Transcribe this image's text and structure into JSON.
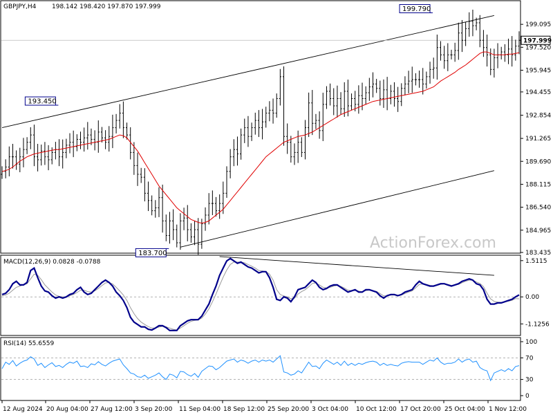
{
  "chart_data": {
    "type": "line",
    "symbol": "GBPJPY,H4",
    "ohlc_readout": "198.142 198.420 197.870 197.999",
    "current_price": "197.999",
    "watermark": "ActionForex.com",
    "colors": {
      "background": "#ffffff",
      "candles": "#000000",
      "moving_average": "#e00000",
      "macd_line": "#00008b",
      "macd_signal": "#999999",
      "rsi_line": "#1e90ff",
      "price_tag_border": "#00008b"
    },
    "x_tick_labels": [
      "12 Aug 2024",
      "20 Aug 04:00",
      "27 Aug 12:00",
      "3 Sep 20:00",
      "11 Sep 04:00",
      "18 Sep 12:00",
      "25 Sep 20:00",
      "3 Oct 04:00",
      "10 Oct 12:00",
      "17 Oct 20:00",
      "25 Oct 04:00",
      "1 Nov 12:00"
    ],
    "panels": [
      {
        "name": "price",
        "y_ticks": [
          "199.095",
          "197.520",
          "195.945",
          "194.455",
          "192.854",
          "191.265",
          "189.690",
          "188.115",
          "186.540",
          "184.965",
          "183.435"
        ],
        "ylim": [
          183.435,
          200.67
        ],
        "annotations": [
          {
            "text": "193.450",
            "x_index": 15,
            "value": 193.45
          },
          {
            "text": "183.700",
            "x_index": 46,
            "value": 183.7
          },
          {
            "text": "199.790",
            "x_index": 120,
            "value": 199.79
          }
        ],
        "channel": {
          "upper": [
            [
              0,
              192.0
            ],
            [
              138,
              199.7
            ]
          ],
          "lower": [
            [
              50,
              183.8
            ],
            [
              138,
              189.05
            ]
          ]
        },
        "close": [
          189.0,
          189.3,
          190.0,
          190.0,
          189.5,
          190.0,
          190.5,
          191.0,
          191.5,
          190.0,
          189.8,
          190.4,
          190.0,
          189.8,
          190.3,
          190.5,
          190.0,
          190.3,
          190.8,
          191.0,
          190.7,
          191.2,
          191.0,
          191.3,
          191.5,
          191.2,
          191.0,
          191.7,
          191.3,
          191.0,
          191.4,
          192.0,
          192.5,
          193.0,
          192.0,
          191.5,
          190.3,
          189.4,
          188.8,
          188.6,
          187.5,
          187.0,
          186.3,
          186.5,
          187.2,
          185.6,
          184.6,
          185.6,
          185.0,
          184.1,
          185.6,
          185.8,
          185.0,
          184.5,
          185.0,
          184.0,
          185.4,
          186.0,
          186.8,
          186.8,
          186.3,
          186.8,
          187.5,
          189.0,
          190.0,
          190.5,
          190.2,
          191.5,
          192.0,
          191.4,
          192.0,
          192.5,
          192.0,
          192.4,
          193.0,
          193.2,
          193.0,
          194.0,
          195.5,
          191.4,
          191.0,
          190.0,
          190.3,
          191.0,
          190.3,
          192.0,
          193.7,
          192.3,
          192.5,
          191.8,
          193.6,
          194.5,
          194.0,
          193.5,
          194.0,
          193.3,
          194.5,
          193.5,
          194.0,
          193.6,
          194.2,
          194.0,
          194.4,
          194.8,
          195.0,
          194.7,
          194.0,
          194.6,
          194.0,
          194.5,
          194.0,
          193.8,
          194.7,
          195.0,
          195.2,
          195.3,
          195.3,
          195.3,
          195.0,
          195.5,
          196.0,
          196.1,
          197.5,
          197.0,
          196.6,
          197.0,
          197.0,
          197.3,
          198.5,
          198.0,
          198.8,
          199.3,
          199.0,
          199.2,
          198.0,
          197.5,
          197.0,
          196.0,
          196.8,
          197.0,
          197.2,
          197.0,
          197.4,
          197.0,
          197.6,
          197.999
        ],
        "moving_average": [
          189.0,
          189.05,
          189.15,
          189.3,
          189.5,
          189.7,
          189.85,
          190.0,
          190.1,
          190.2,
          190.25,
          190.3,
          190.35,
          190.4,
          190.45,
          190.5,
          190.5,
          190.55,
          190.6,
          190.65,
          190.7,
          190.75,
          190.8,
          190.85,
          190.9,
          190.95,
          191.0,
          191.05,
          191.1,
          191.15,
          191.2,
          191.3,
          191.4,
          191.5,
          191.45,
          191.3,
          191.0,
          190.7,
          190.4,
          190.0,
          189.6,
          189.2,
          188.8,
          188.4,
          188.0,
          187.7,
          187.4,
          187.1,
          186.8,
          186.5,
          186.3,
          186.1,
          185.9,
          185.7,
          185.6,
          185.5,
          185.45,
          185.5,
          185.6,
          185.8,
          186.0,
          186.2,
          186.4,
          186.7,
          187.0,
          187.3,
          187.6,
          187.9,
          188.2,
          188.5,
          188.8,
          189.1,
          189.4,
          189.7,
          190.0,
          190.2,
          190.4,
          190.6,
          190.8,
          191.0,
          191.1,
          191.2,
          191.3,
          191.4,
          191.45,
          191.5,
          191.6,
          191.7,
          191.85,
          192.0,
          192.15,
          192.3,
          192.45,
          192.6,
          192.75,
          192.9,
          193.0,
          193.1,
          193.2,
          193.3,
          193.4,
          193.5,
          193.6,
          193.7,
          193.8,
          193.85,
          193.9,
          193.95,
          194.0,
          194.05,
          194.1,
          194.15,
          194.2,
          194.25,
          194.3,
          194.35,
          194.4,
          194.45,
          194.5,
          194.6,
          194.7,
          194.8,
          195.0,
          195.2,
          195.35,
          195.5,
          195.65,
          195.8,
          196.0,
          196.15,
          196.3,
          196.5,
          196.7,
          196.9,
          197.1,
          197.2,
          197.2,
          197.1,
          197.0,
          197.0,
          197.0,
          197.0,
          197.05,
          197.05,
          197.1,
          197.15
        ]
      },
      {
        "name": "macd",
        "label": "MACD(12,26,9) 0.0828 -0.0788",
        "y_ticks": [
          "1.5115",
          "0.00",
          "-1.1256"
        ],
        "ylim": [
          -1.55,
          1.65
        ],
        "trendline": [
          [
            61,
            1.68
          ],
          [
            138,
            0.9
          ]
        ],
        "macd": [
          0.1,
          0.15,
          0.3,
          0.55,
          0.65,
          0.5,
          0.5,
          0.6,
          1.1,
          1.2,
          0.8,
          0.45,
          0.25,
          0.2,
          0.05,
          -0.05,
          0.0,
          -0.05,
          0.0,
          0.1,
          0.15,
          0.3,
          0.4,
          0.2,
          0.1,
          0.15,
          0.3,
          0.45,
          0.6,
          0.7,
          0.6,
          0.45,
          0.2,
          0.05,
          -0.15,
          -0.45,
          -0.85,
          -1.05,
          -1.15,
          -1.25,
          -1.25,
          -1.35,
          -1.38,
          -1.3,
          -1.2,
          -1.2,
          -1.28,
          -1.4,
          -1.4,
          -1.4,
          -1.2,
          -1.1,
          -1.0,
          -0.95,
          -0.95,
          -0.95,
          -0.8,
          -0.55,
          -0.3,
          0.1,
          0.45,
          0.9,
          1.2,
          1.5,
          1.6,
          1.5,
          1.4,
          1.45,
          1.35,
          1.25,
          1.2,
          1.1,
          1.0,
          1.05,
          1.05,
          0.8,
          0.4,
          -0.1,
          -0.15,
          0.0,
          -0.05,
          -0.2,
          0.0,
          0.3,
          0.35,
          0.4,
          0.55,
          0.7,
          0.6,
          0.4,
          0.3,
          0.35,
          0.45,
          0.5,
          0.5,
          0.4,
          0.3,
          0.2,
          0.25,
          0.3,
          0.2,
          0.2,
          0.3,
          0.3,
          0.25,
          0.2,
          0.05,
          -0.05,
          0.05,
          0.1,
          0.1,
          0.05,
          0.1,
          0.2,
          0.25,
          0.3,
          0.5,
          0.65,
          0.55,
          0.5,
          0.45,
          0.45,
          0.5,
          0.55,
          0.55,
          0.5,
          0.45,
          0.5,
          0.55,
          0.65,
          0.7,
          0.75,
          0.7,
          0.55,
          0.5,
          0.3,
          -0.1,
          -0.3,
          -0.3,
          -0.25,
          -0.25,
          -0.2,
          -0.15,
          -0.1,
          0.0,
          0.0828
        ],
        "signal": [
          0.05,
          0.08,
          0.15,
          0.28,
          0.4,
          0.45,
          0.5,
          0.55,
          0.75,
          0.95,
          0.9,
          0.72,
          0.5,
          0.35,
          0.2,
          0.08,
          0.02,
          0.0,
          0.0,
          0.05,
          0.1,
          0.18,
          0.28,
          0.28,
          0.22,
          0.2,
          0.25,
          0.35,
          0.47,
          0.58,
          0.6,
          0.54,
          0.4,
          0.25,
          0.08,
          -0.15,
          -0.45,
          -0.7,
          -0.9,
          -1.05,
          -1.15,
          -1.24,
          -1.3,
          -1.3,
          -1.26,
          -1.23,
          -1.25,
          -1.3,
          -1.35,
          -1.38,
          -1.3,
          -1.2,
          -1.1,
          -1.02,
          -0.98,
          -0.96,
          -0.88,
          -0.72,
          -0.5,
          -0.2,
          0.12,
          0.48,
          0.82,
          1.12,
          1.35,
          1.45,
          1.45,
          1.45,
          1.42,
          1.35,
          1.28,
          1.2,
          1.1,
          1.08,
          1.06,
          0.95,
          0.7,
          0.3,
          0.1,
          0.04,
          0.0,
          -0.08,
          -0.05,
          0.12,
          0.22,
          0.3,
          0.42,
          0.56,
          0.58,
          0.5,
          0.4,
          0.37,
          0.4,
          0.45,
          0.48,
          0.44,
          0.37,
          0.28,
          0.26,
          0.28,
          0.24,
          0.22,
          0.26,
          0.28,
          0.26,
          0.23,
          0.14,
          0.04,
          0.04,
          0.07,
          0.08,
          0.07,
          0.08,
          0.14,
          0.2,
          0.25,
          0.38,
          0.52,
          0.54,
          0.52,
          0.48,
          0.46,
          0.48,
          0.52,
          0.54,
          0.52,
          0.48,
          0.49,
          0.52,
          0.59,
          0.65,
          0.7,
          0.7,
          0.62,
          0.56,
          0.43,
          0.15,
          -0.08,
          -0.19,
          -0.22,
          -0.23,
          -0.21,
          -0.18,
          -0.14,
          -0.07,
          -0.0788
        ]
      },
      {
        "name": "rsi",
        "label": "RSI(14) 55.6559",
        "y_ticks": [
          "100",
          "70",
          "30",
          "0"
        ],
        "ylim": [
          0,
          100
        ],
        "levels": [
          70,
          30
        ],
        "rsi": [
          50,
          62,
          58,
          65,
          55,
          60,
          64,
          66,
          72,
          68,
          56,
          60,
          52,
          57,
          61,
          54,
          56,
          52,
          58,
          62,
          60,
          64,
          54,
          55,
          52,
          59,
          57,
          63,
          58,
          55,
          60,
          64,
          66,
          68,
          57,
          50,
          42,
          40,
          35,
          34,
          38,
          32,
          35,
          38,
          42,
          35,
          30,
          40,
          38,
          33,
          45,
          44,
          39,
          36,
          41,
          34,
          45,
          50,
          55,
          54,
          48,
          52,
          58,
          64,
          66,
          68,
          62,
          66,
          64,
          60,
          64,
          66,
          62,
          66,
          64,
          66,
          62,
          68,
          74,
          44,
          42,
          38,
          40,
          46,
          42,
          52,
          62,
          54,
          55,
          50,
          60,
          66,
          62,
          58,
          62,
          56,
          64,
          56,
          60,
          56,
          60,
          58,
          61,
          63,
          64,
          62,
          56,
          60,
          56,
          58,
          56,
          55,
          60,
          62,
          63,
          62,
          62,
          62,
          58,
          62,
          66,
          64,
          70,
          62,
          58,
          60,
          60,
          62,
          68,
          62,
          66,
          68,
          62,
          64,
          52,
          48,
          46,
          28,
          42,
          45,
          48,
          45,
          50,
          46,
          54,
          55.6559
        ]
      }
    ]
  }
}
